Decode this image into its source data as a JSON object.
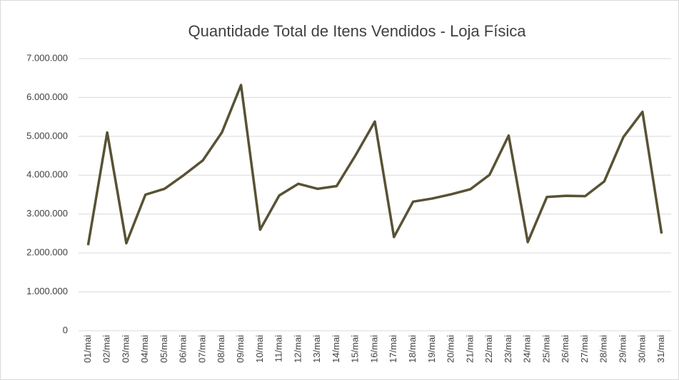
{
  "chart_data": {
    "type": "line",
    "title": "Quantidade Total de Itens Vendidos - Loja Física",
    "categories": [
      "01/mai",
      "02/mai",
      "03/mai",
      "04/mai",
      "05/mai",
      "06/mai",
      "07/mai",
      "08/mai",
      "09/mai",
      "10/mai",
      "11/mai",
      "12/mai",
      "13/mai",
      "14/mai",
      "15/mai",
      "16/mai",
      "17/mai",
      "18/mai",
      "19/mai",
      "20/mai",
      "21/mai",
      "22/mai",
      "23/mai",
      "24/mai",
      "25/mai",
      "26/mai",
      "27/mai",
      "28/mai",
      "29/mai",
      "30/mai",
      "31/mai"
    ],
    "values": [
      2200000,
      5100000,
      2250000,
      3500000,
      3650000,
      4000000,
      4380000,
      5100000,
      6320000,
      2600000,
      3480000,
      3780000,
      3650000,
      3720000,
      4520000,
      5380000,
      2410000,
      3320000,
      3400000,
      3510000,
      3640000,
      4010000,
      5020000,
      2280000,
      3440000,
      3470000,
      3460000,
      3840000,
      4980000,
      5630000,
      2500000
    ],
    "color": "#585234",
    "ylim": [
      0,
      7000000
    ],
    "yticks": [
      0,
      {
        "value": 1000000,
        "label": "1.000.000"
      },
      {
        "value": 2000000,
        "label": "2.000.000"
      },
      {
        "value": 3000000,
        "label": "3.000.000"
      },
      {
        "value": 4000000,
        "label": "4.000.000"
      },
      {
        "value": 5000000,
        "label": "5.000.000"
      },
      {
        "value": 6000000,
        "label": "6.000.000"
      },
      {
        "value": 7000000,
        "label": "7.000.000"
      }
    ],
    "grid": true
  }
}
